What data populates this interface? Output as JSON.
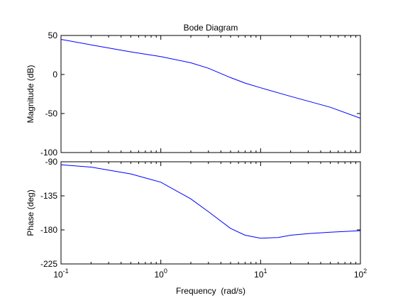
{
  "chart_data": [
    {
      "type": "line",
      "title": "Bode Diagram",
      "xlabel": "",
      "ylabel": "Magnitude (dB)",
      "x_scale": "log",
      "xlim": [
        0.1,
        100
      ],
      "ylim": [
        -100,
        50
      ],
      "yticks": [
        50,
        0,
        -50,
        -100
      ],
      "grid": false,
      "series": [
        {
          "color": "#0000ff",
          "x": [
            0.1,
            0.2,
            0.5,
            1,
            2,
            3,
            5,
            7,
            10,
            20,
            50,
            100
          ],
          "y": [
            45,
            38,
            29,
            23,
            15,
            8,
            -4,
            -11,
            -17,
            -28,
            -42,
            -56
          ]
        }
      ]
    },
    {
      "type": "line",
      "title": "",
      "xlabel": "Frequency  (rad/s)",
      "ylabel": "Phase (deg)",
      "x_scale": "log",
      "xlim": [
        0.1,
        100
      ],
      "ylim": [
        -225,
        -90
      ],
      "yticks": [
        -90,
        -135,
        -180,
        -225
      ],
      "xticks": [
        0.1,
        1,
        10,
        100
      ],
      "xtick_labels": [
        {
          "base": "10",
          "exp": "-1"
        },
        {
          "base": "10",
          "exp": "0"
        },
        {
          "base": "10",
          "exp": "1"
        },
        {
          "base": "10",
          "exp": "2"
        }
      ],
      "grid": false,
      "series": [
        {
          "color": "#0000ff",
          "x": [
            0.1,
            0.2,
            0.5,
            1,
            2,
            3,
            5,
            7,
            10,
            15,
            20,
            30,
            50,
            100
          ],
          "y": [
            -94,
            -97,
            -106,
            -117,
            -139,
            -156,
            -178,
            -187,
            -191,
            -190,
            -187,
            -185,
            -183,
            -181
          ]
        }
      ]
    }
  ]
}
